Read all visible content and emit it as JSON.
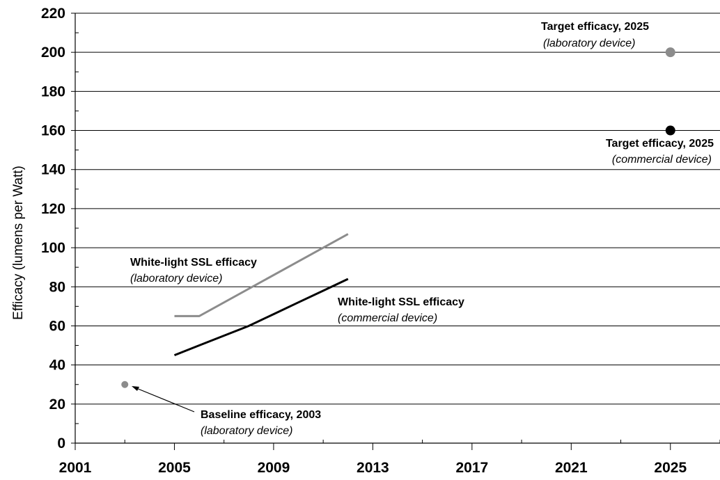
{
  "chart_data": {
    "type": "line",
    "title": "",
    "xlabel": "",
    "ylabel": "Efficacy  (lumens per Watt)",
    "xlim": [
      2001,
      2027
    ],
    "ylim": [
      0,
      220
    ],
    "x_ticks": [
      2001,
      2005,
      2009,
      2013,
      2017,
      2021,
      2025
    ],
    "y_ticks": [
      0,
      20,
      40,
      60,
      80,
      100,
      120,
      140,
      160,
      180,
      200,
      220
    ],
    "grid": "horizontal",
    "series": [
      {
        "label_bold": "White-light SSL efficacy",
        "label_italic": "(laboratory device)",
        "color": "#8c8c8c",
        "x": [
          2005,
          2006,
          2012
        ],
        "y": [
          65,
          65,
          107
        ]
      },
      {
        "label_bold": "White-light SSL efficacy",
        "label_italic": "(commercial device)",
        "color": "#000000",
        "x": [
          2005,
          2006,
          2007,
          2008,
          2009,
          2010,
          2011,
          2012
        ],
        "y": [
          45,
          50,
          55,
          60,
          66,
          72,
          78,
          84
        ]
      }
    ],
    "points": [
      {
        "label_bold": "Baseline efficacy, 2003",
        "label_italic": "(laboratory device)",
        "x": 2003,
        "y": 30,
        "color": "#8c8c8c"
      },
      {
        "label_bold": "Target efficacy, 2025",
        "label_italic": "(laboratory device)",
        "x": 2025,
        "y": 200,
        "color": "#8c8c8c"
      },
      {
        "label_bold": "Target efficacy, 2025",
        "label_italic": "(commercial device)",
        "x": 2025,
        "y": 160,
        "color": "#000000"
      }
    ]
  }
}
